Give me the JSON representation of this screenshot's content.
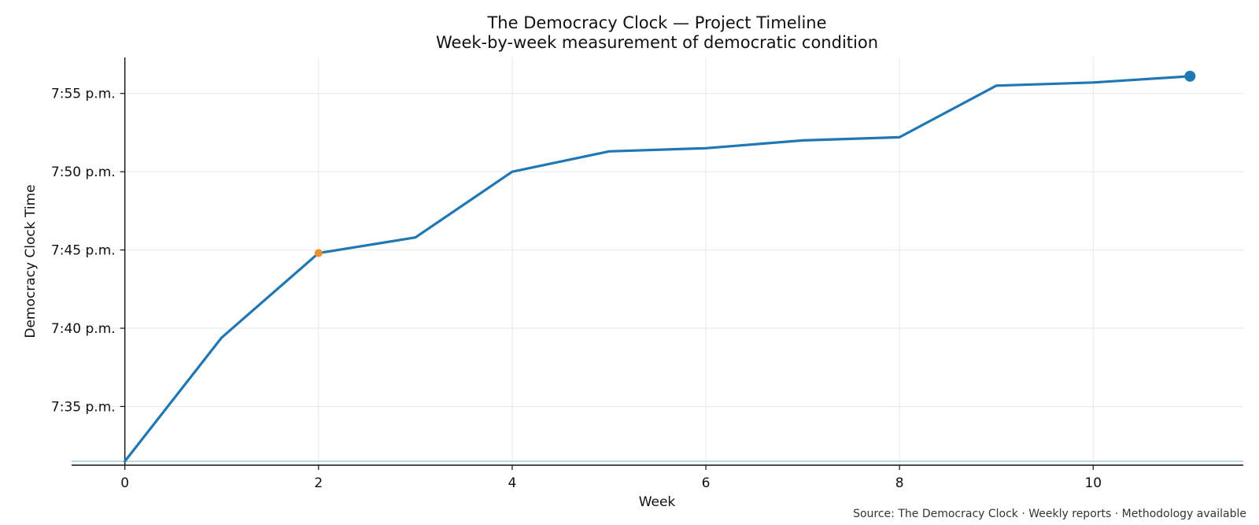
{
  "chart_data": {
    "type": "line",
    "title": "The Democracy Clock — Project Timeline",
    "subtitle": "Week-by-week measurement of democratic condition",
    "xlabel": "Week",
    "ylabel": "Democracy Clock Time",
    "source": "Source: The Democracy Clock · Weekly reports · Methodology available",
    "xlim": [
      -0.55,
      11.55
    ],
    "ylim": [
      451.25,
      477.3
    ],
    "x_ticks": [
      0,
      2,
      4,
      6,
      8,
      10
    ],
    "y_ticks": [
      {
        "value": 455,
        "label": "7:35 p.m."
      },
      {
        "value": 460,
        "label": "7:40 p.m."
      },
      {
        "value": 465,
        "label": "7:45 p.m."
      },
      {
        "value": 470,
        "label": "7:50 p.m."
      },
      {
        "value": 475,
        "label": "7:55 p.m."
      }
    ],
    "grid": true,
    "series": [
      {
        "x": [
          0,
          1,
          2,
          3,
          4,
          5,
          6,
          7,
          8,
          9,
          10,
          11
        ],
        "y": [
          451.5,
          459.4,
          464.8,
          465.8,
          470.0,
          471.3,
          471.5,
          472.0,
          472.2,
          475.5,
          475.7,
          476.1
        ],
        "color": "#1f77b4"
      }
    ],
    "reference_line": {
      "y": 451.5,
      "color": "#9ecae1"
    },
    "highlight_points": [
      {
        "x": 2,
        "y": 464.8,
        "color": "#f28e2b",
        "role": "marker"
      },
      {
        "x": 11,
        "y": 476.1,
        "color": "#1f77b4",
        "role": "latest"
      }
    ]
  }
}
